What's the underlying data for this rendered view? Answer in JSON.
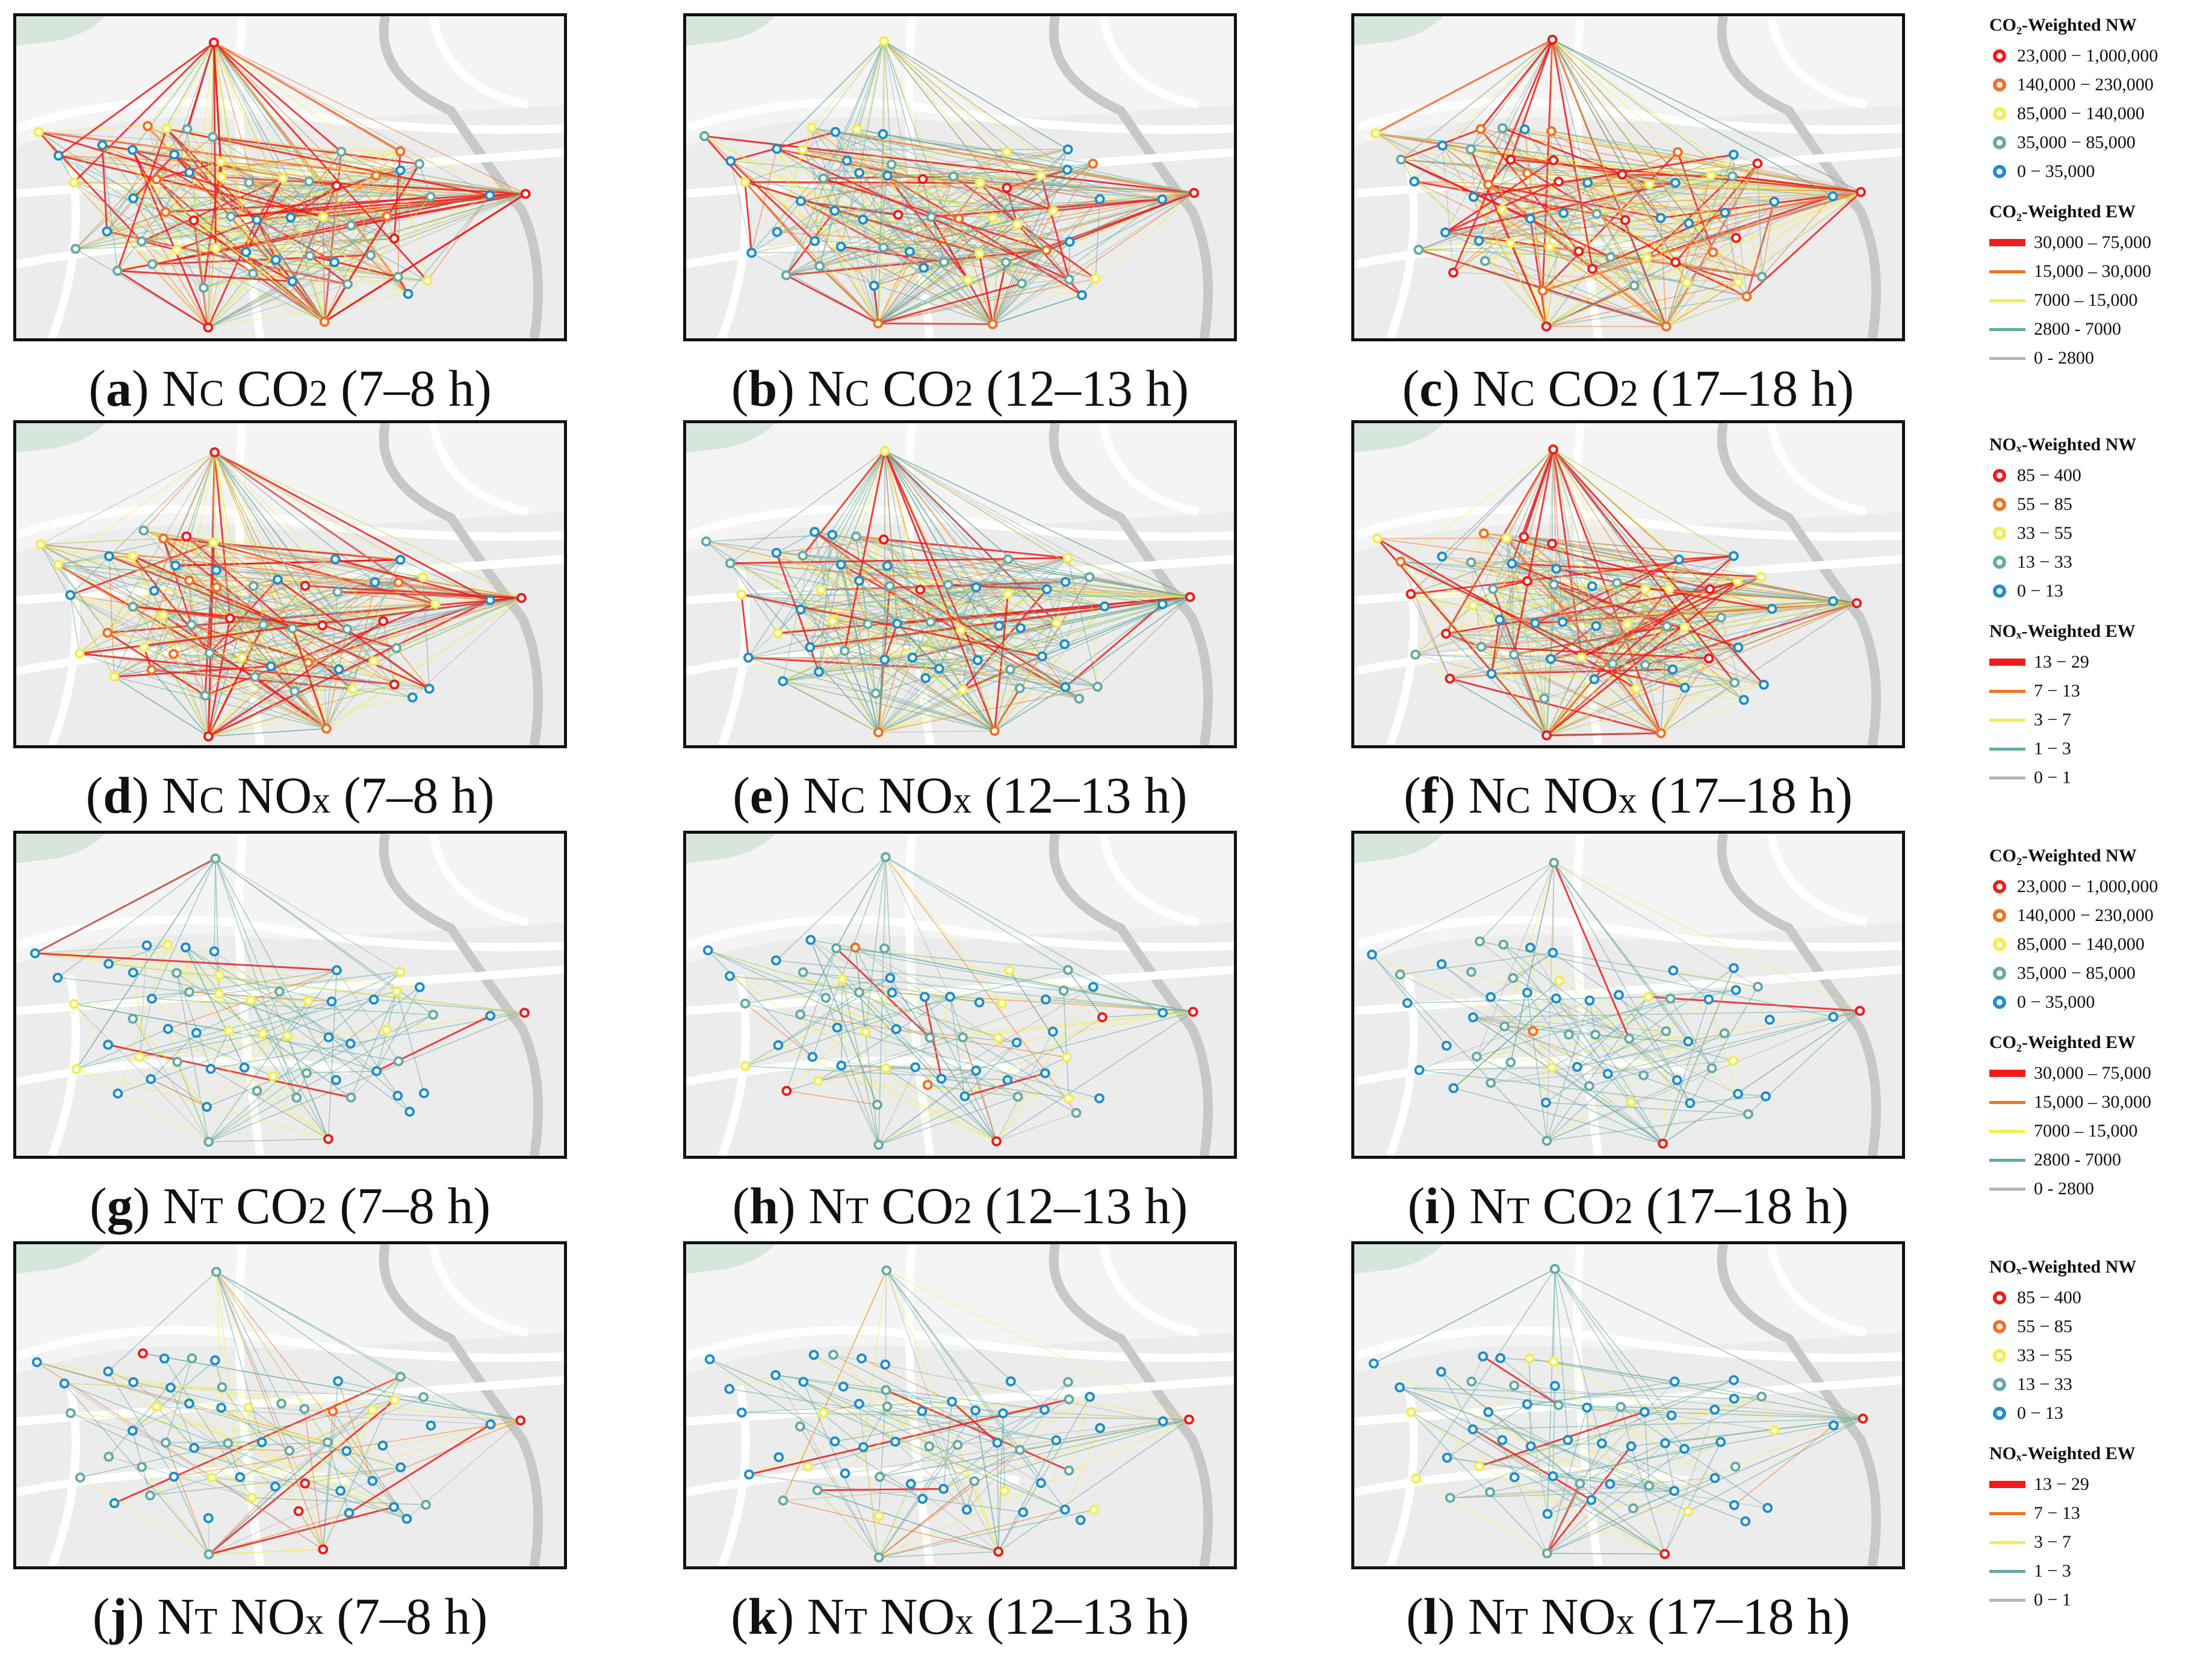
{
  "panels": [
    {
      "id": "a",
      "net": "C",
      "pollutant": "CO2",
      "period": "(7–8 h)",
      "intensity": 1.0
    },
    {
      "id": "b",
      "net": "C",
      "pollutant": "CO2",
      "period": "(12–13 h)",
      "intensity": 0.55
    },
    {
      "id": "c",
      "net": "C",
      "pollutant": "CO2",
      "period": "(17–18 h)",
      "intensity": 1.05
    },
    {
      "id": "d",
      "net": "C",
      "pollutant": "NOx",
      "period": "(7–8 h)",
      "intensity": 0.8
    },
    {
      "id": "e",
      "net": "C",
      "pollutant": "NOx",
      "period": "(12–13 h)",
      "intensity": 0.35
    },
    {
      "id": "f",
      "net": "C",
      "pollutant": "NOx",
      "period": "(17–18 h)",
      "intensity": 0.7
    },
    {
      "id": "g",
      "net": "T",
      "pollutant": "CO2",
      "period": "(7–8 h)",
      "intensity": 0.4
    },
    {
      "id": "h",
      "net": "T",
      "pollutant": "CO2",
      "period": "(12–13 h)",
      "intensity": 0.45
    },
    {
      "id": "i",
      "net": "T",
      "pollutant": "CO2",
      "period": "(17–18 h)",
      "intensity": 0.25
    },
    {
      "id": "j",
      "net": "T",
      "pollutant": "NOx",
      "period": "(7–8 h)",
      "intensity": 0.45
    },
    {
      "id": "k",
      "net": "T",
      "pollutant": "NOx",
      "period": "(12–13 h)",
      "intensity": 0.5
    },
    {
      "id": "l",
      "net": "T",
      "pollutant": "NOx",
      "period": "(17–18 h)",
      "intensity": 0.25
    }
  ],
  "caption_prefix": "N",
  "label_wrap": {
    "open": "(",
    "close": ")"
  },
  "legends": [
    {
      "nw_title": "CO₂-Weighted NW",
      "nw": [
        "23,000 − 1,000,000",
        "140,000 − 230,000",
        "85,000 − 140,000",
        "35,000 − 85,000",
        "0 − 35,000"
      ],
      "ew_title": "CO₂-Weighted EW",
      "ew": [
        "30,000 – 75,000",
        "15,000 – 30,000",
        "7000 – 15,000",
        "2800 - 7000",
        "0 - 2800"
      ]
    },
    {
      "nw_title": "NOₓ-Weighted NW",
      "nw": [
        "85 − 400",
        "55 − 85",
        "33 − 55",
        "13 − 33",
        "0 − 13"
      ],
      "ew_title": "NOₓ-Weighted EW",
      "ew": [
        "13 − 29",
        "7 − 13",
        "3 − 7",
        "1 − 3",
        "0 − 1"
      ]
    },
    {
      "nw_title": "CO₂-Weighted NW",
      "nw": [
        "23,000 − 1,000,000",
        "140,000 − 230,000",
        "85,000 − 140,000",
        "35,000 − 85,000",
        "0 − 35,000"
      ],
      "ew_title": "CO₂-Weighted EW",
      "ew": [
        "30,000 – 75,000",
        "15,000 – 30,000",
        "7000 – 15,000",
        "2800 - 7000",
        "0 - 2800"
      ]
    },
    {
      "nw_title": "NOₓ-Weighted NW",
      "nw": [
        "85 − 400",
        "55 − 85",
        "33 − 55",
        "13 − 33",
        "0 − 13"
      ],
      "ew_title": "NOₓ-Weighted EW",
      "ew": [
        "13 − 29",
        "7 − 13",
        "3 − 7",
        "1 − 3",
        "0 − 1"
      ]
    }
  ],
  "colors": {
    "class1": "#ee1c1c",
    "class2": "#f2711f",
    "class3": "#f3ee4a",
    "class4": "#66aaa4",
    "class5": "#1e8fc9",
    "class6": "#b5b5b5"
  }
}
